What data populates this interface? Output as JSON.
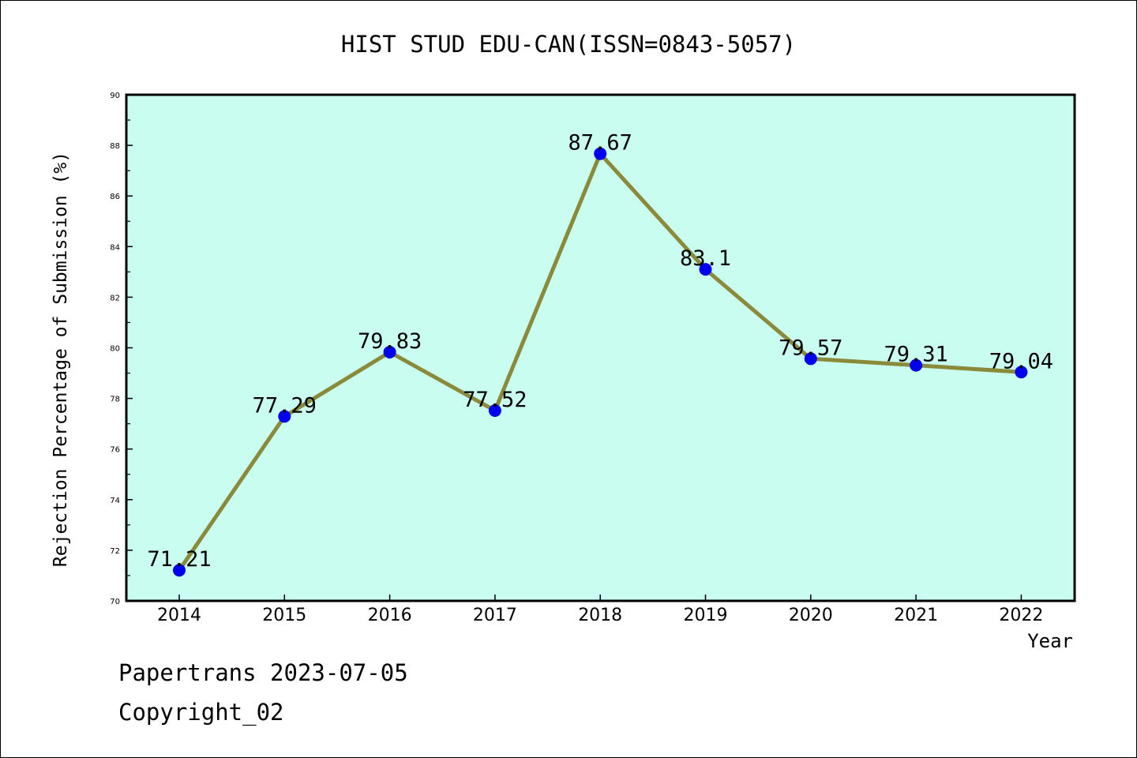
{
  "footer": {
    "line1": "Papertrans 2023-07-05",
    "line2": "Copyright_02"
  },
  "colors": {
    "plot_background": "#c8fdef",
    "line": "#8b8a3b",
    "marker": "#0000ee",
    "axis": "#000000"
  },
  "chart_data": {
    "type": "line",
    "title": "HIST STUD EDU-CAN(ISSN=0843-5057)",
    "xlabel": "Year",
    "ylabel": "Rejection Percentage of Submission (%)",
    "categories": [
      "2014",
      "2015",
      "2016",
      "2017",
      "2018",
      "2019",
      "2020",
      "2021",
      "2022"
    ],
    "series": [
      {
        "values": [
          71.21,
          77.29,
          79.83,
          77.52,
          87.67,
          83.1,
          79.57,
          79.31,
          79.04
        ],
        "labels": [
          "71.21",
          "77.29",
          "79.83",
          "77.52",
          "87.67",
          "83.1",
          "79.57",
          "79.31",
          "79.04"
        ]
      }
    ],
    "ylim": [
      70,
      90
    ],
    "yticks": [
      "70",
      "72",
      "74",
      "76",
      "78",
      "80",
      "82",
      "84",
      "86",
      "88",
      "90"
    ],
    "grid": false,
    "legend": "none"
  }
}
